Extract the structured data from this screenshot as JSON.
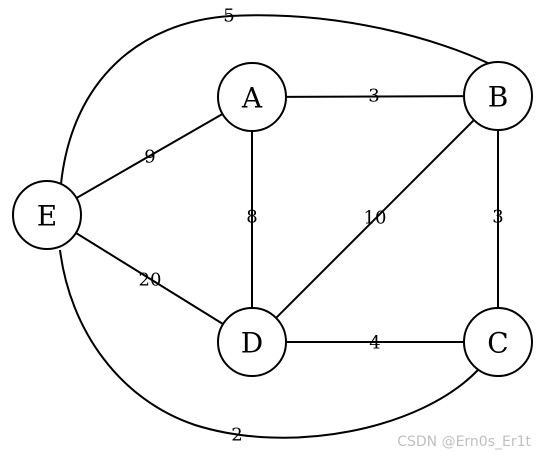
{
  "graph": {
    "nodes": [
      {
        "id": "A",
        "label": "A"
      },
      {
        "id": "B",
        "label": "B"
      },
      {
        "id": "C",
        "label": "C"
      },
      {
        "id": "D",
        "label": "D"
      },
      {
        "id": "E",
        "label": "E"
      }
    ],
    "edges": [
      {
        "id": "A-B",
        "from": "A",
        "to": "B",
        "weight": "3"
      },
      {
        "id": "A-D",
        "from": "A",
        "to": "D",
        "weight": "8"
      },
      {
        "id": "A-E",
        "from": "A",
        "to": "E",
        "weight": "9"
      },
      {
        "id": "B-C",
        "from": "B",
        "to": "C",
        "weight": "3"
      },
      {
        "id": "B-D",
        "from": "B",
        "to": "D",
        "weight": "10"
      },
      {
        "id": "D-C",
        "from": "D",
        "to": "C",
        "weight": "4"
      },
      {
        "id": "E-D",
        "from": "E",
        "to": "D",
        "weight": "20"
      },
      {
        "id": "E-B",
        "from": "E",
        "to": "B",
        "weight": "5"
      },
      {
        "id": "E-C",
        "from": "E",
        "to": "C",
        "weight": "2"
      }
    ]
  },
  "watermark": "CSDN @Ern0s_Er1t"
}
